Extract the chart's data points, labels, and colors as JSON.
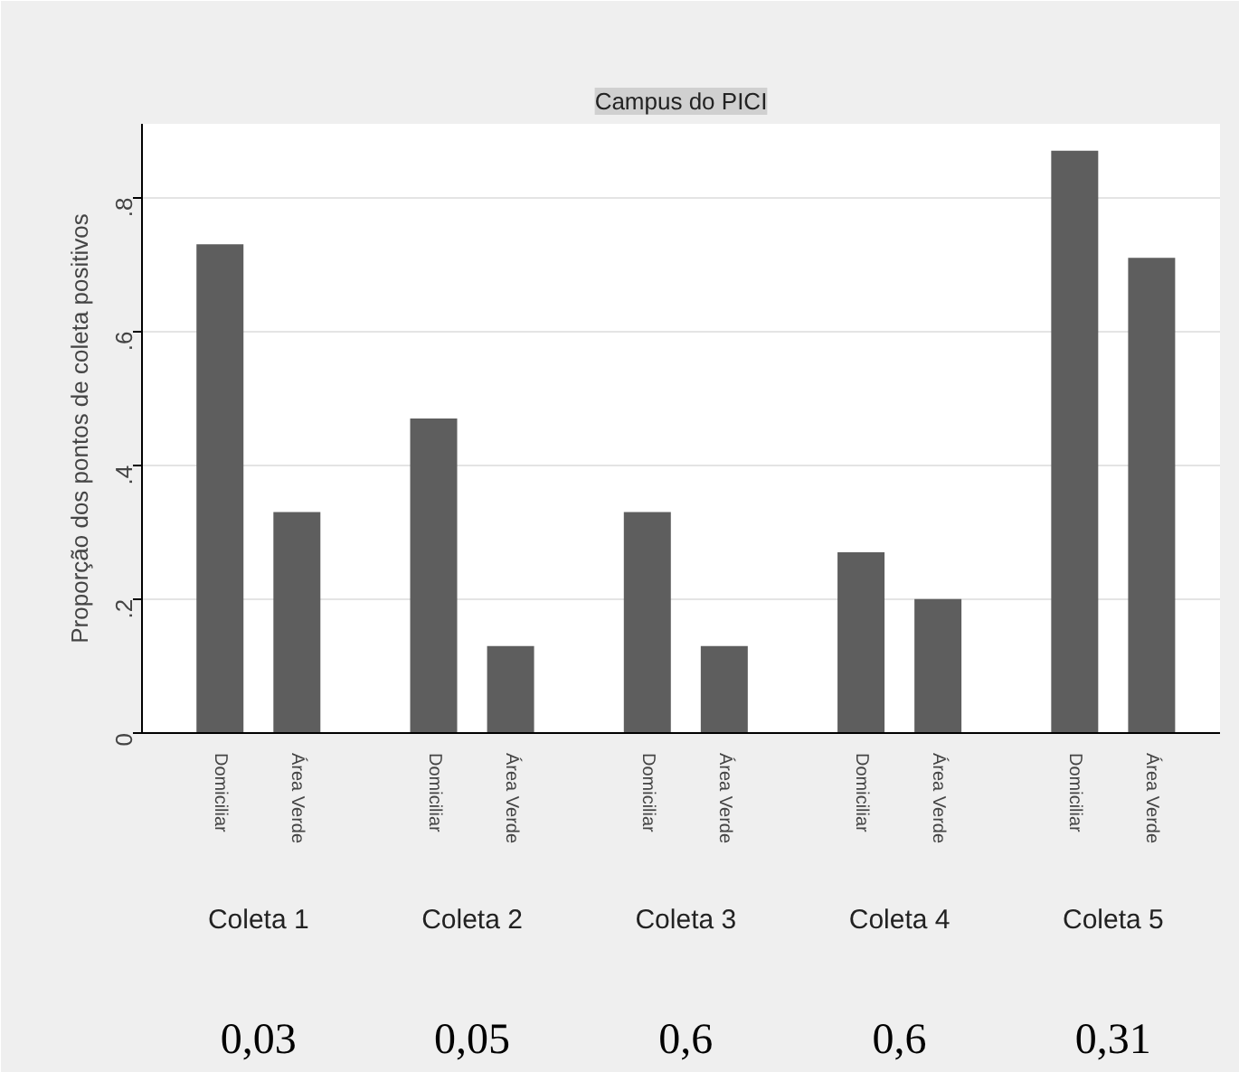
{
  "chart_data": {
    "type": "bar",
    "title": "Campus do PICI",
    "ylabel": "Proporção dos pontos de coleta positivos",
    "categories": [
      "Domiciliar",
      "Área Verde",
      "Domiciliar",
      "Área Verde",
      "Domiciliar",
      "Área Verde",
      "Domiciliar",
      "Área Verde",
      "Domiciliar",
      "Área Verde"
    ],
    "values": [
      0.73,
      0.33,
      0.47,
      0.13,
      0.33,
      0.13,
      0.27,
      0.2,
      0.87,
      0.71
    ],
    "color": "#5e5e5e",
    "ylim": [
      0,
      0.91
    ],
    "yticks": [
      {
        "value": 0,
        "label": "0"
      },
      {
        "value": 0.2,
        "label": ".2"
      },
      {
        "value": 0.4,
        "label": ".4"
      },
      {
        "value": 0.6,
        "label": ".6"
      },
      {
        "value": 0.8,
        "label": ".8"
      }
    ],
    "grid": "y",
    "annotations": [
      "Coleta 1",
      "Coleta 2",
      "Coleta 3",
      "Coleta 4",
      "Coleta 5",
      "0,03",
      "0,05",
      "0,6",
      "0,6",
      "0,31"
    ]
  }
}
